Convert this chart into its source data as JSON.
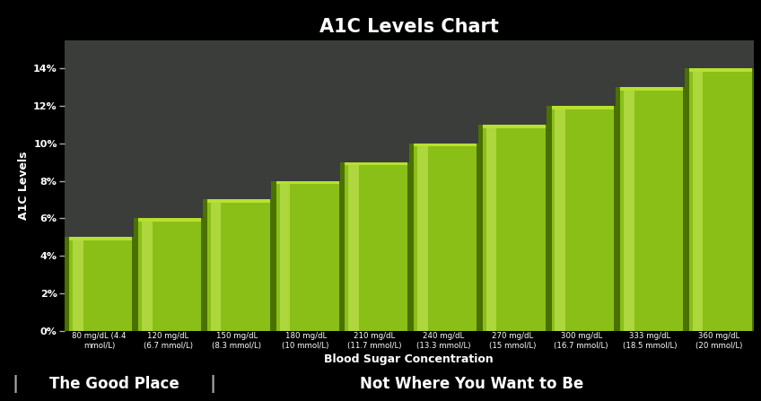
{
  "title": "A1C Levels Chart",
  "xlabel": "Blood Sugar Concentration",
  "ylabel": "A1C Levels",
  "categories": [
    "80 mg/dL (4.4\nmmol/L)",
    "120 mg/dL\n(6.7 mmol/L)",
    "150 mg/dL\n(8.3 mmol/L)",
    "180 mg/dL\n(10 mmol/L)",
    "210 mg/dL\n(11.7 mmol/L)",
    "240 mg/dL\n(13.3 mmol/L)",
    "270 mg/dL\n(15 mmol/L)",
    "300 mg/dL\n(16.7 mmol/L)",
    "333 mg/dL\n(18.5 mmol/L)",
    "360 mg/dL\n(20 mmol/L)"
  ],
  "values": [
    5,
    6,
    7,
    8,
    9,
    10,
    11,
    12,
    13,
    14
  ],
  "yticks": [
    0,
    2,
    4,
    6,
    8,
    10,
    12,
    14
  ],
  "ylim": [
    0,
    15.5
  ],
  "bar_color_main": "#8abf18",
  "bar_color_light": "#b8e030",
  "bar_color_dark": "#4a7000",
  "bar_color_highlight": "#d0f060",
  "background_color": "#000000",
  "plot_bg_color": "#3a3d3a",
  "text_color": "#ffffff",
  "title_fontsize": 15,
  "label_fontsize": 9,
  "tick_fontsize": 8,
  "footer_left": "The Good Place",
  "footer_right": "Not Where You Want to Be",
  "footer_color": "#ffffff",
  "footer_bg": "#111111"
}
